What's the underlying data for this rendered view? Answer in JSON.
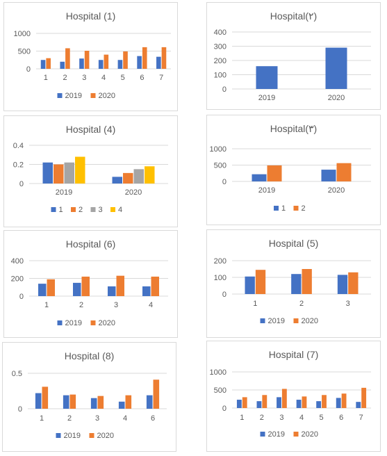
{
  "colors": {
    "c1": "#4472C4",
    "c2": "#ED7D31",
    "c3": "#A5A5A5",
    "c4": "#FFC000",
    "grid": "#d9d9d9",
    "text": "#595959"
  },
  "chart_data": [
    {
      "id": "h1",
      "type": "bar",
      "title": "Hospital (1)",
      "categories": [
        "1",
        "2",
        "3",
        "4",
        "5",
        "6",
        "7"
      ],
      "ylim": [
        0,
        1000
      ],
      "yticks": [
        0,
        500,
        1000
      ],
      "grid": true,
      "legend": "bottom",
      "series": [
        {
          "name": "2019",
          "values": [
            250,
            200,
            290,
            250,
            250,
            360,
            340
          ]
        },
        {
          "name": "2020",
          "values": [
            300,
            580,
            510,
            400,
            490,
            610,
            610
          ]
        }
      ]
    },
    {
      "id": "h2",
      "type": "bar",
      "title": "Hospital(۲)",
      "categories": [
        "2019",
        "2020"
      ],
      "ylim": [
        0,
        400
      ],
      "yticks": [
        0,
        100,
        200,
        300,
        400
      ],
      "grid": true,
      "legend": "none",
      "series": [
        {
          "name": "",
          "values": [
            160,
            290
          ]
        }
      ]
    },
    {
      "id": "h4",
      "type": "bar",
      "title": "Hospital (4)",
      "categories": [
        "2019",
        "2020"
      ],
      "ylim": [
        0,
        0.4
      ],
      "yticks": [
        0,
        0.2,
        0.4
      ],
      "grid": true,
      "legend": "bottom",
      "series": [
        {
          "name": "1",
          "values": [
            0.22,
            0.07
          ]
        },
        {
          "name": "2",
          "values": [
            0.2,
            0.11
          ]
        },
        {
          "name": "3",
          "values": [
            0.22,
            0.15
          ]
        },
        {
          "name": "4",
          "values": [
            0.28,
            0.18
          ]
        }
      ]
    },
    {
      "id": "h3",
      "type": "bar",
      "title": "Hospital(۳)",
      "categories": [
        "2019",
        "2020"
      ],
      "ylim": [
        0,
        1000
      ],
      "yticks": [
        0,
        500,
        1000
      ],
      "grid": true,
      "legend": "bottom",
      "series": [
        {
          "name": "1",
          "values": [
            220,
            360
          ]
        },
        {
          "name": "2",
          "values": [
            490,
            560
          ]
        }
      ]
    },
    {
      "id": "h6",
      "type": "bar",
      "title": "Hospital (6)",
      "categories": [
        "1",
        "2",
        "3",
        "4"
      ],
      "ylim": [
        0,
        400
      ],
      "yticks": [
        0,
        200,
        400
      ],
      "grid": true,
      "legend": "bottom",
      "series": [
        {
          "name": "2019",
          "values": [
            140,
            150,
            110,
            110
          ]
        },
        {
          "name": "2020",
          "values": [
            190,
            220,
            230,
            220
          ]
        }
      ]
    },
    {
      "id": "h5",
      "type": "bar",
      "title": "Hospital (5)",
      "categories": [
        "1",
        "2",
        "3"
      ],
      "ylim": [
        0,
        200
      ],
      "yticks": [
        0,
        100,
        200
      ],
      "grid": true,
      "legend": "bottom",
      "series": [
        {
          "name": "2019",
          "values": [
            105,
            120,
            115
          ]
        },
        {
          "name": "2020",
          "values": [
            145,
            150,
            130
          ]
        }
      ]
    },
    {
      "id": "h8",
      "type": "bar",
      "title": "Hospital (8)",
      "categories": [
        "1",
        "2",
        "3",
        "4",
        "6"
      ],
      "ylim": [
        0,
        0.5
      ],
      "yticks": [
        0,
        0.5
      ],
      "grid": true,
      "legend": "bottom",
      "series": [
        {
          "name": "2019",
          "values": [
            0.22,
            0.19,
            0.15,
            0.1,
            0.19
          ]
        },
        {
          "name": "2020",
          "values": [
            0.31,
            0.2,
            0.18,
            0.19,
            0.41
          ]
        }
      ]
    },
    {
      "id": "h7",
      "type": "bar",
      "title": "Hospital (7)",
      "categories": [
        "1",
        "2",
        "3",
        "4",
        "5",
        "6",
        "7"
      ],
      "ylim": [
        0,
        1000
      ],
      "yticks": [
        0,
        500,
        1000
      ],
      "grid": true,
      "legend": "bottom",
      "series": [
        {
          "name": "2019",
          "values": [
            230,
            190,
            300,
            230,
            190,
            280,
            170
          ]
        },
        {
          "name": "2020",
          "values": [
            300,
            360,
            530,
            320,
            360,
            400,
            560
          ]
        }
      ]
    }
  ]
}
